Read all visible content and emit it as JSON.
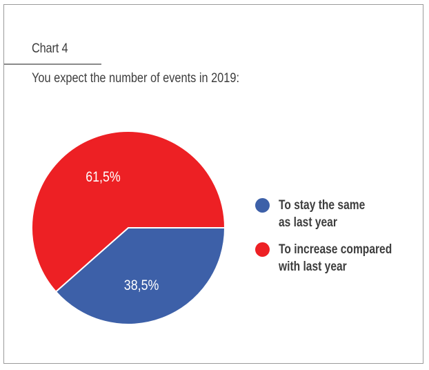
{
  "header": {
    "chart_label": "Chart 4",
    "question": "You expect the number of events in 2019:"
  },
  "chart_data": {
    "type": "pie",
    "categories": [
      "To stay the same as last year",
      "To increase compared with last year"
    ],
    "values": [
      38.5,
      61.5
    ],
    "labels": [
      "38,5%",
      "61,5%"
    ],
    "colors": [
      "#3d60a8",
      "#ed2024"
    ],
    "legend_placement": "right",
    "legend": [
      {
        "line1": "To stay the same",
        "line2": "as last year",
        "color": "#3d60a8"
      },
      {
        "line1": "To increase compared",
        "line2": "with last year",
        "color": "#ed2024"
      }
    ]
  },
  "colors": {
    "blue": "#3d60a8",
    "red": "#ed2024",
    "text": "#3d3d3d"
  }
}
